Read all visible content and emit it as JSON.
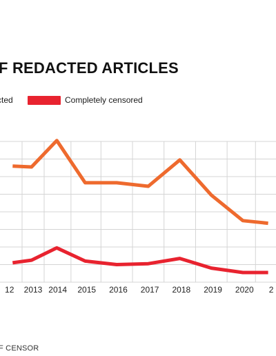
{
  "title": "F REDACTED ARTICLES",
  "source": "F CENSOR",
  "colors": {
    "partially": "#EE6A2E",
    "completely": "#E8232F",
    "grid": "#D4D4D4"
  },
  "legend": [
    {
      "label": "cted",
      "color": "#EE6A2E"
    },
    {
      "label": "Completely censored",
      "color": "#E8232F"
    }
  ],
  "chart_data": {
    "type": "line",
    "x": [
      "12",
      "2013",
      "2014",
      "2015",
      "2016",
      "2017",
      "2018",
      "2019",
      "2020",
      "2"
    ],
    "grid": true,
    "series": [
      {
        "name": "cted",
        "values": [
          [
            2012.4,
            5.6
          ],
          [
            2013,
            5.55
          ],
          [
            2013.8,
            7.05
          ],
          [
            2014.7,
            4.65
          ],
          [
            2015.7,
            4.65
          ],
          [
            2016.7,
            4.45
          ],
          [
            2017.7,
            5.95
          ],
          [
            2018.7,
            3.95
          ],
          [
            2019.7,
            2.5
          ],
          [
            2020.5,
            2.35
          ]
        ]
      },
      {
        "name": "Completely censored",
        "values": [
          [
            2012.4,
            0.1
          ],
          [
            2013,
            0.25
          ],
          [
            2013.8,
            0.95
          ],
          [
            2014.7,
            0.2
          ],
          [
            2015.7,
            0.0
          ],
          [
            2016.7,
            0.05
          ],
          [
            2017.7,
            0.35
          ],
          [
            2018.7,
            -0.2
          ],
          [
            2019.7,
            -0.45
          ],
          [
            2020.5,
            -0.45
          ]
        ]
      }
    ],
    "xlim": [
      2012,
      2020.75
    ],
    "ylim": [
      -1,
      7
    ]
  }
}
